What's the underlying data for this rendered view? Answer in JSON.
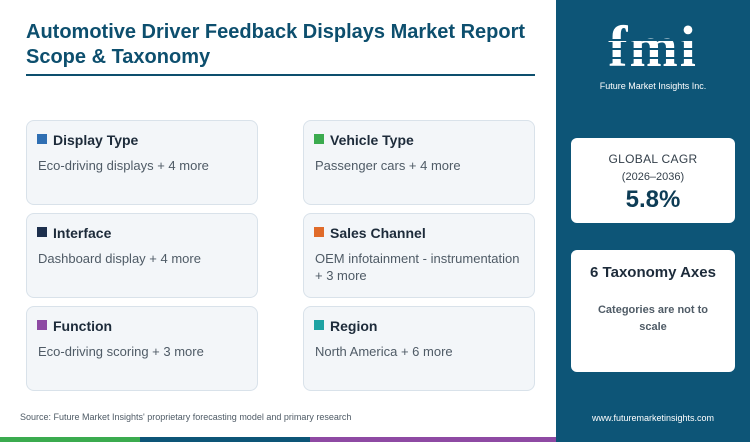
{
  "report": {
    "title": "Automotive Driver Feedback Displays Market Report Scope & Taxonomy",
    "source": "Source: Future Market Insights' proprietary forecasting model and primary research"
  },
  "colors": {
    "brand": "#0d5577",
    "display_type": "#2f6fb3",
    "vehicle_type": "#3bab4f",
    "interface": "#1c2f4d",
    "sales_channel": "#e06b2a",
    "function": "#8e4aa3",
    "region": "#1ea3a3"
  },
  "cards": [
    {
      "title": "Display Type",
      "summary": "Eco-driving displays + 4 more"
    },
    {
      "title": "Vehicle Type",
      "summary": "Passenger cars + 4 more"
    },
    {
      "title": "Interface",
      "summary": "Dashboard display + 4 more"
    },
    {
      "title": "Sales Channel",
      "summary": "OEM infotainment - instrumentation + 3 more"
    },
    {
      "title": "Function",
      "summary": "Eco-driving scoring + 3 more"
    },
    {
      "title": "Region",
      "summary": "North America + 6 more"
    }
  ],
  "sidebar": {
    "logo_text": "fmi",
    "logo_tagline": "Future Market Insights Inc.",
    "cagr_label": "GLOBAL CAGR",
    "cagr_period": "(2026–2036)",
    "cagr_value": "5.8%",
    "taxonomy_title": "6 Taxonomy Axes",
    "taxonomy_note": "Categories are not to scale",
    "website": "www.futuremarketinsights.com"
  }
}
